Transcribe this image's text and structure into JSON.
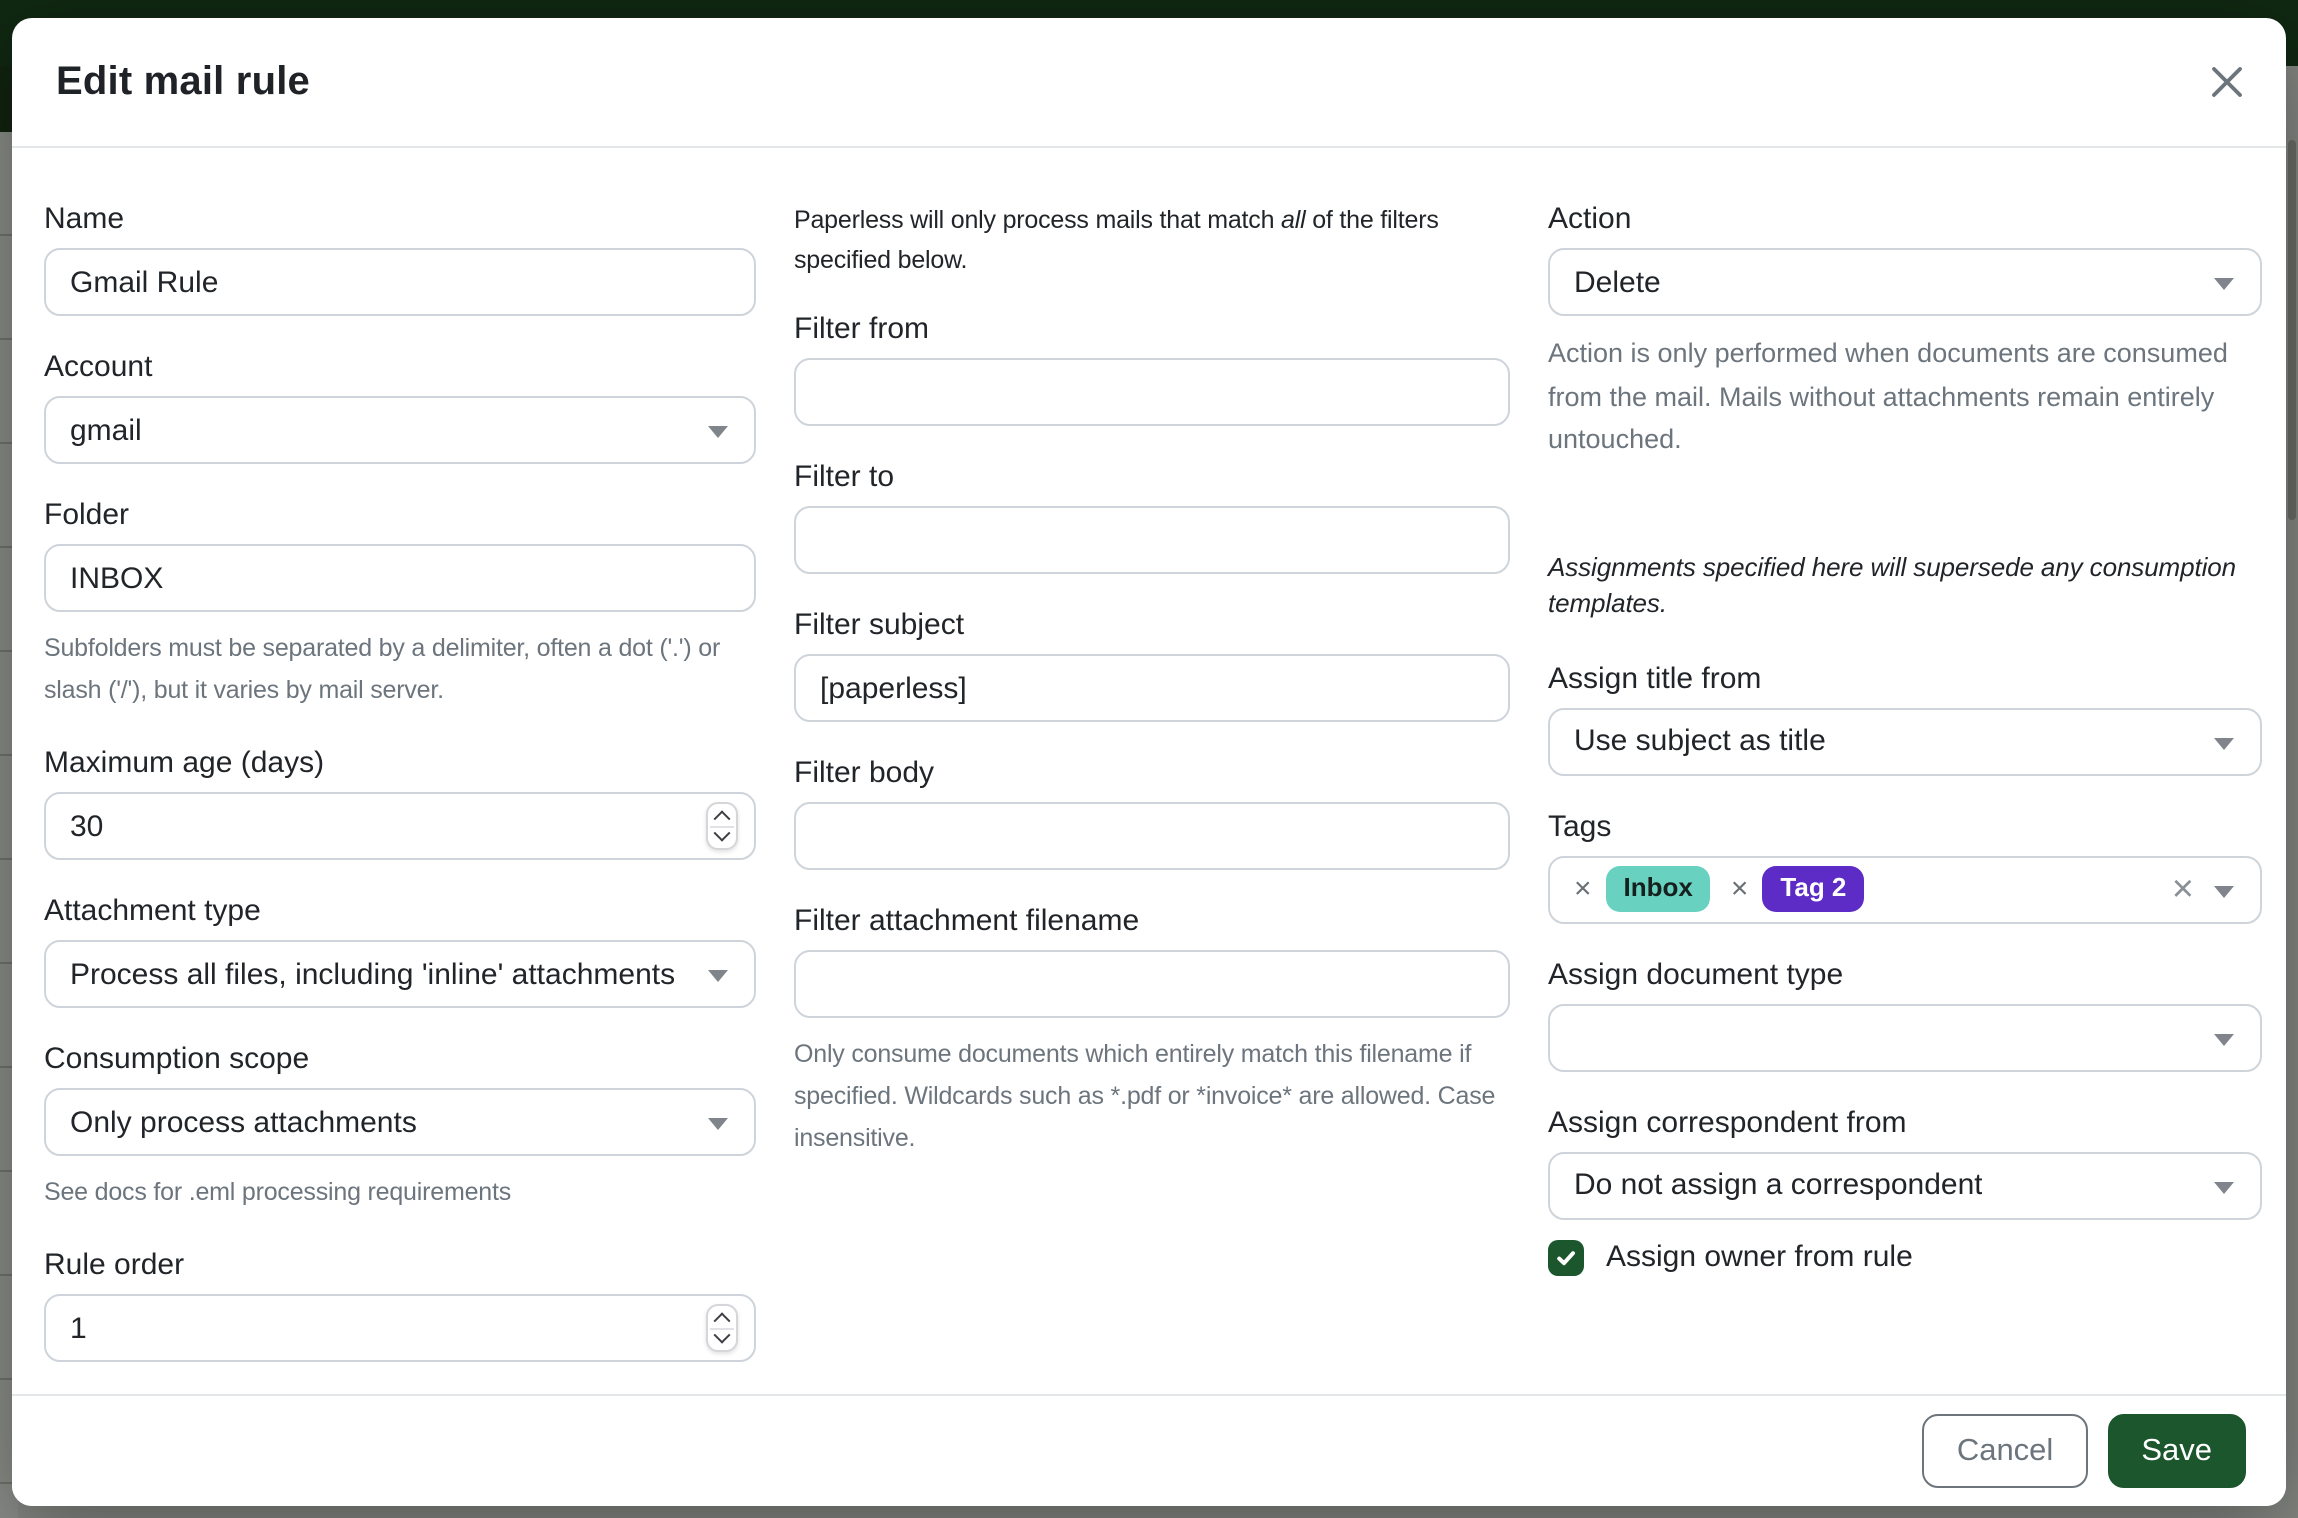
{
  "modal": {
    "title": "Edit mail rule"
  },
  "left": {
    "name": {
      "label": "Name",
      "value": "Gmail Rule"
    },
    "account": {
      "label": "Account",
      "value": "gmail"
    },
    "folder": {
      "label": "Folder",
      "value": "INBOX",
      "help": "Subfolders must be separated by a delimiter, often a dot ('.') or slash ('/'), but it varies by mail server."
    },
    "maximum_age": {
      "label": "Maximum age (days)",
      "value": "30"
    },
    "attachment_type": {
      "label": "Attachment type",
      "value": "Process all files, including 'inline' attachments"
    },
    "consumption_scope": {
      "label": "Consumption scope",
      "value": "Only process attachments",
      "help": "See docs for .eml processing requirements"
    },
    "rule_order": {
      "label": "Rule order",
      "value": "1"
    }
  },
  "middle": {
    "intro": {
      "pre": "Paperless will only process mails that match ",
      "emphasis": "all",
      "post": " of the filters specified below."
    },
    "filter_from": {
      "label": "Filter from",
      "value": ""
    },
    "filter_to": {
      "label": "Filter to",
      "value": ""
    },
    "filter_subject": {
      "label": "Filter subject",
      "value": "[paperless]"
    },
    "filter_body": {
      "label": "Filter body",
      "value": ""
    },
    "filter_attachment_filename": {
      "label": "Filter attachment filename",
      "value": "",
      "help": "Only consume documents which entirely match this filename if specified. Wildcards such as *.pdf or *invoice* are allowed. Case insensitive."
    }
  },
  "right": {
    "action": {
      "label": "Action",
      "value": "Delete",
      "help": "Action is only performed when documents are consumed from the mail. Mails without attachments remain entirely untouched."
    },
    "assignments_note": "Assignments specified here will supersede any consumption templates.",
    "assign_title_from": {
      "label": "Assign title from",
      "value": "Use subject as title"
    },
    "tags": {
      "label": "Tags",
      "remove_symbol": "×",
      "clear_symbol": "×",
      "chips": [
        {
          "label": "Inbox",
          "bg": "#68d1bf",
          "fg": "#16211f"
        },
        {
          "label": "Tag 2",
          "bg": "#5d2bc6",
          "fg": "#ffffff"
        }
      ]
    },
    "assign_document_type": {
      "label": "Assign document type",
      "value": ""
    },
    "assign_correspondent_from": {
      "label": "Assign correspondent from",
      "value": "Do not assign a correspondent"
    },
    "assign_owner": {
      "label": "Assign owner from rule",
      "checked": true
    }
  },
  "footer": {
    "cancel_label": "Cancel",
    "save_label": "Save"
  },
  "colors": {
    "primary_green": "#1b562c",
    "backdrop_header_green": "#102812",
    "tag_inbox_bg": "#68d1bf",
    "tag_tag2_bg": "#5d2bc6"
  }
}
